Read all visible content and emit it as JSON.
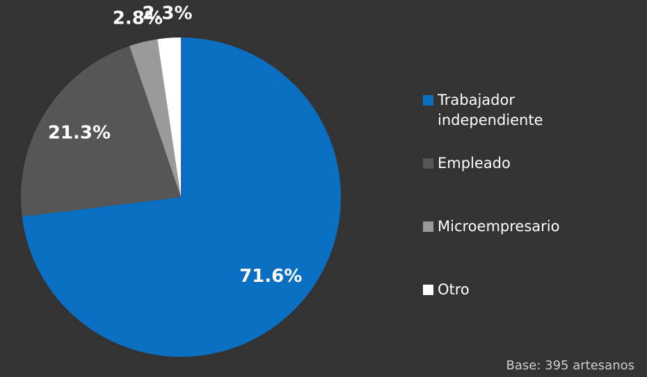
{
  "chart_data": {
    "type": "pie",
    "categories": [
      "Trabajador independiente",
      "Empleado",
      "Microempresario",
      "Otro"
    ],
    "values": [
      71.6,
      21.3,
      2.8,
      2.3
    ],
    "value_labels": [
      "71.6%",
      "21.3%",
      "2.8%",
      "2.3%"
    ],
    "colors": [
      "#0b6fc1",
      "#565656",
      "#9a9a9a",
      "#ffffff"
    ],
    "legend": "right",
    "note": "Base: 395 artesanos"
  }
}
